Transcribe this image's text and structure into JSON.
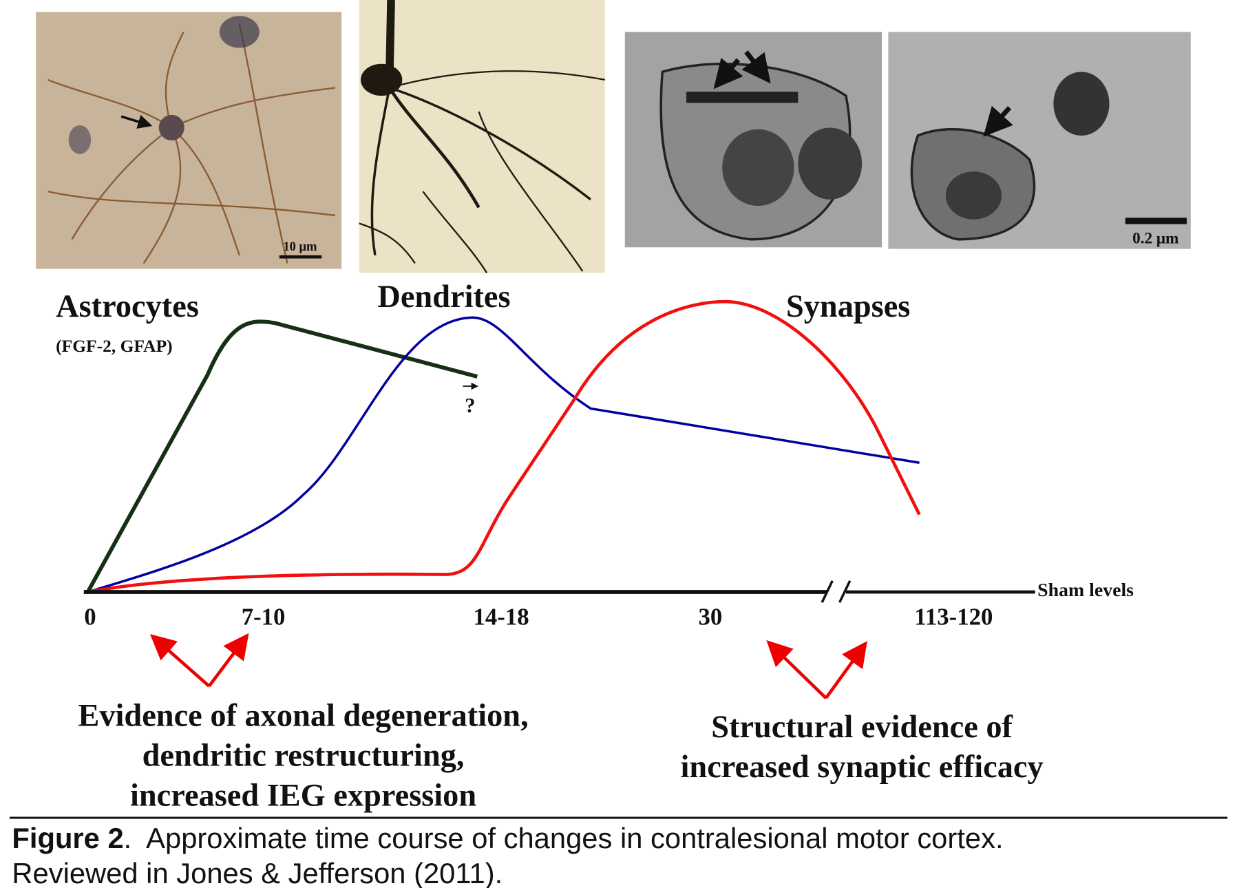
{
  "micrographs": {
    "scale_bar_1": "10 μm",
    "scale_bar_2": "0.2 μm"
  },
  "diagram": {
    "astrocytes_label": "Astrocytes",
    "astrocytes_markers": "(FGF-2, GFAP)",
    "dendrites_label": "Dendrites",
    "synapses_label": "Synapses",
    "astrocytes_end_mark": "?",
    "baseline_label": "Sham levels",
    "time_points": [
      "0",
      "7-10",
      "14-18",
      "30",
      "113-120"
    ]
  },
  "annotations": {
    "left": [
      "Evidence of axonal degeneration,",
      "dendritic restructuring,",
      "increased IEG expression"
    ],
    "right": [
      "Structural evidence of",
      "increased synaptic efficacy"
    ]
  },
  "caption": {
    "label": "Figure 2",
    "lines": [
      ".  Approximate time course of changes in contralesional motor cortex.",
      "Reviewed in Jones & Jefferson (2011)."
    ]
  }
}
